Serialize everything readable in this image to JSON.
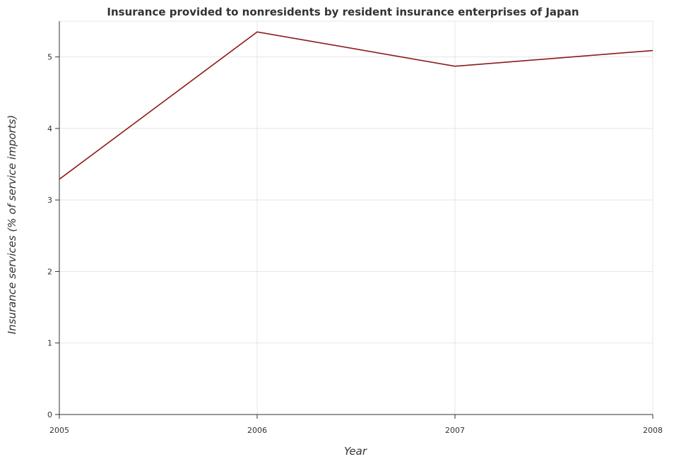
{
  "chart_data": {
    "type": "line",
    "title": "Insurance provided to nonresidents by resident insurance enterprises of Japan",
    "xlabel": "Year",
    "ylabel": "Insurance services (% of service imports)",
    "categories": [
      "2005",
      "2006",
      "2007",
      "2008"
    ],
    "series": [
      {
        "values": [
          3.29,
          5.35,
          4.87,
          5.09
        ]
      }
    ],
    "ylim": [
      0,
      5.5
    ],
    "yticks": [
      0,
      1,
      2,
      3,
      4,
      5
    ],
    "grid": true,
    "line_color": "#8b1a1a"
  }
}
